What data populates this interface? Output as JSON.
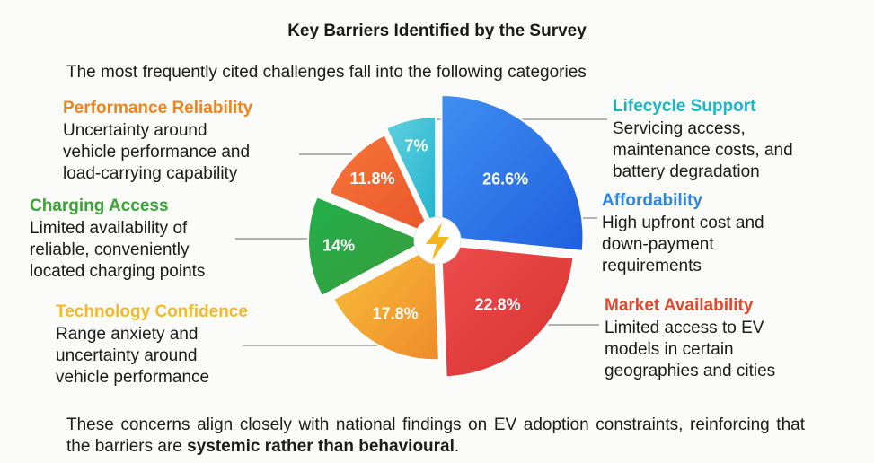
{
  "title": "Key Barriers Identified by the Survey",
  "subtitle": "The most frequently cited challenges fall into the following categories",
  "center_icon": "lightning-bolt-icon",
  "categories": {
    "performance": {
      "name": "Performance Reliability",
      "desc": [
        "Uncertainty around",
        "vehicle performance and",
        "load-carrying capability"
      ],
      "color": "#f0841c"
    },
    "charging": {
      "name": "Charging Access",
      "desc": [
        "Limited availability of",
        "reliable, conveniently",
        "located charging points"
      ],
      "color": "#3aa535"
    },
    "technology": {
      "name": "Technology Confidence",
      "desc": [
        "Range anxiety and",
        "uncertainty around",
        "vehicle performance"
      ],
      "color": "#f3b92a"
    },
    "lifecycle": {
      "name": "Lifecycle Support",
      "desc": [
        "Servicing access,",
        "maintenance costs, and",
        "battery degradation"
      ],
      "color": "#1bb6c8"
    },
    "affordability": {
      "name": "Affordability",
      "desc": [
        "High upfront cost and",
        "down-payment",
        "requirements"
      ],
      "color": "#2f86e0"
    },
    "market": {
      "name": "Market Availability",
      "desc": [
        "Limited access to EV",
        "models in certain",
        "geographies and cities"
      ],
      "color": "#e2482e"
    }
  },
  "footer": {
    "text": "These concerns align closely with national findings on EV adoption constraints, reinforcing that the barriers are ",
    "bold": "systemic rather than behavioural",
    "end": "."
  },
  "chart_data": {
    "type": "pie",
    "title": "Key Barriers Identified by the Survey",
    "slices": [
      {
        "label": "Affordability",
        "value": 26.6,
        "display": "26.6%",
        "color_start": "#3f8ff0",
        "color_end": "#1f5fe0"
      },
      {
        "label": "Market Availability",
        "value": 22.8,
        "display": "22.8%",
        "color_start": "#ee4d4d",
        "color_end": "#d6322f"
      },
      {
        "label": "Technology Confidence",
        "value": 17.8,
        "display": "17.8%",
        "color_start": "#f7c03a",
        "color_end": "#ef8b2a"
      },
      {
        "label": "Charging Access",
        "value": 14,
        "display": "14%",
        "color_start": "#21b04b",
        "color_end": "#3d9a3a"
      },
      {
        "label": "Performance Reliability",
        "value": 11.8,
        "display": "11.8%",
        "color_start": "#f7763a",
        "color_end": "#e9552b"
      },
      {
        "label": "Lifecycle Support",
        "value": 7,
        "display": "7%",
        "color_start": "#5fd0e0",
        "color_end": "#22b2cc"
      }
    ]
  }
}
